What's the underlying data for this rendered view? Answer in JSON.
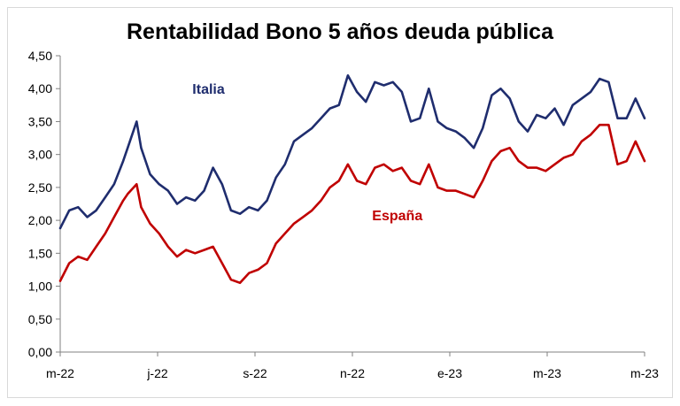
{
  "chart_data": {
    "type": "line",
    "title": "Rentabilidad Bono 5 años deuda pública",
    "xlabel": "",
    "ylabel": "",
    "ylim": [
      0,
      4.5
    ],
    "y_ticks": [
      "0,00",
      "0,50",
      "1,00",
      "1,50",
      "2,00",
      "2,50",
      "3,00",
      "3,50",
      "4,00",
      "4,50"
    ],
    "x_ticks": [
      "m-22",
      "j-22",
      "s-22",
      "n-22",
      "e-23",
      "m-23",
      "m-23"
    ],
    "x_range": [
      0,
      260
    ],
    "grid": false,
    "legend": "inline labels",
    "series": [
      {
        "name": "Italia",
        "color": "#1f2d6e",
        "x": [
          0,
          4,
          8,
          12,
          16,
          20,
          24,
          28,
          30,
          34,
          36,
          40,
          44,
          48,
          52,
          56,
          60,
          64,
          68,
          72,
          76,
          80,
          84,
          88,
          92,
          96,
          100,
          104,
          108,
          112,
          116,
          120,
          124,
          128,
          132,
          136,
          140,
          144,
          148,
          152,
          156,
          160,
          164,
          168,
          172,
          176,
          180,
          184,
          188,
          192,
          196,
          200,
          204,
          208,
          212,
          216,
          220,
          224,
          228,
          232,
          236,
          240,
          244,
          248,
          252,
          256,
          260
        ],
        "values": [
          1.88,
          2.15,
          2.2,
          2.05,
          2.15,
          2.35,
          2.55,
          2.9,
          3.1,
          3.5,
          3.1,
          2.7,
          2.55,
          2.45,
          2.25,
          2.35,
          2.3,
          2.45,
          2.8,
          2.55,
          2.15,
          2.1,
          2.2,
          2.15,
          2.3,
          2.65,
          2.85,
          3.2,
          3.3,
          3.4,
          3.55,
          3.7,
          3.75,
          4.2,
          3.95,
          3.8,
          4.1,
          4.05,
          4.1,
          3.95,
          3.5,
          3.55,
          4.0,
          3.5,
          3.4,
          3.35,
          3.25,
          3.1,
          3.4,
          3.9,
          4.0,
          3.85,
          3.5,
          3.35,
          3.6,
          3.55,
          3.7,
          3.45,
          3.75,
          3.85,
          3.95,
          4.15,
          4.1,
          3.55,
          3.55,
          3.85,
          3.55
        ],
        "label_value_position": {
          "x": 66,
          "y": 3.92
        }
      },
      {
        "name": "España",
        "color": "#c00000",
        "x": [
          0,
          4,
          8,
          12,
          16,
          20,
          24,
          28,
          30,
          34,
          36,
          40,
          44,
          48,
          52,
          56,
          60,
          64,
          68,
          72,
          76,
          80,
          84,
          88,
          92,
          96,
          100,
          104,
          108,
          112,
          116,
          120,
          124,
          128,
          132,
          136,
          140,
          144,
          148,
          152,
          156,
          160,
          164,
          168,
          172,
          176,
          180,
          184,
          188,
          192,
          196,
          200,
          204,
          208,
          212,
          216,
          220,
          224,
          228,
          232,
          236,
          240,
          244,
          248,
          252,
          256,
          260
        ],
        "values": [
          1.08,
          1.35,
          1.45,
          1.4,
          1.6,
          1.8,
          2.05,
          2.3,
          2.4,
          2.55,
          2.2,
          1.95,
          1.8,
          1.6,
          1.45,
          1.55,
          1.5,
          1.55,
          1.6,
          1.35,
          1.1,
          1.05,
          1.2,
          1.25,
          1.35,
          1.65,
          1.8,
          1.95,
          2.05,
          2.15,
          2.3,
          2.5,
          2.6,
          2.85,
          2.6,
          2.55,
          2.8,
          2.85,
          2.75,
          2.8,
          2.6,
          2.55,
          2.85,
          2.5,
          2.45,
          2.45,
          2.4,
          2.35,
          2.6,
          2.9,
          3.05,
          3.1,
          2.9,
          2.8,
          2.8,
          2.75,
          2.85,
          2.95,
          3.0,
          3.2,
          3.3,
          3.45,
          3.45,
          2.85,
          2.9,
          3.2,
          2.9
        ],
        "label_value_position": {
          "x": 150,
          "y": 2.0
        }
      }
    ]
  }
}
